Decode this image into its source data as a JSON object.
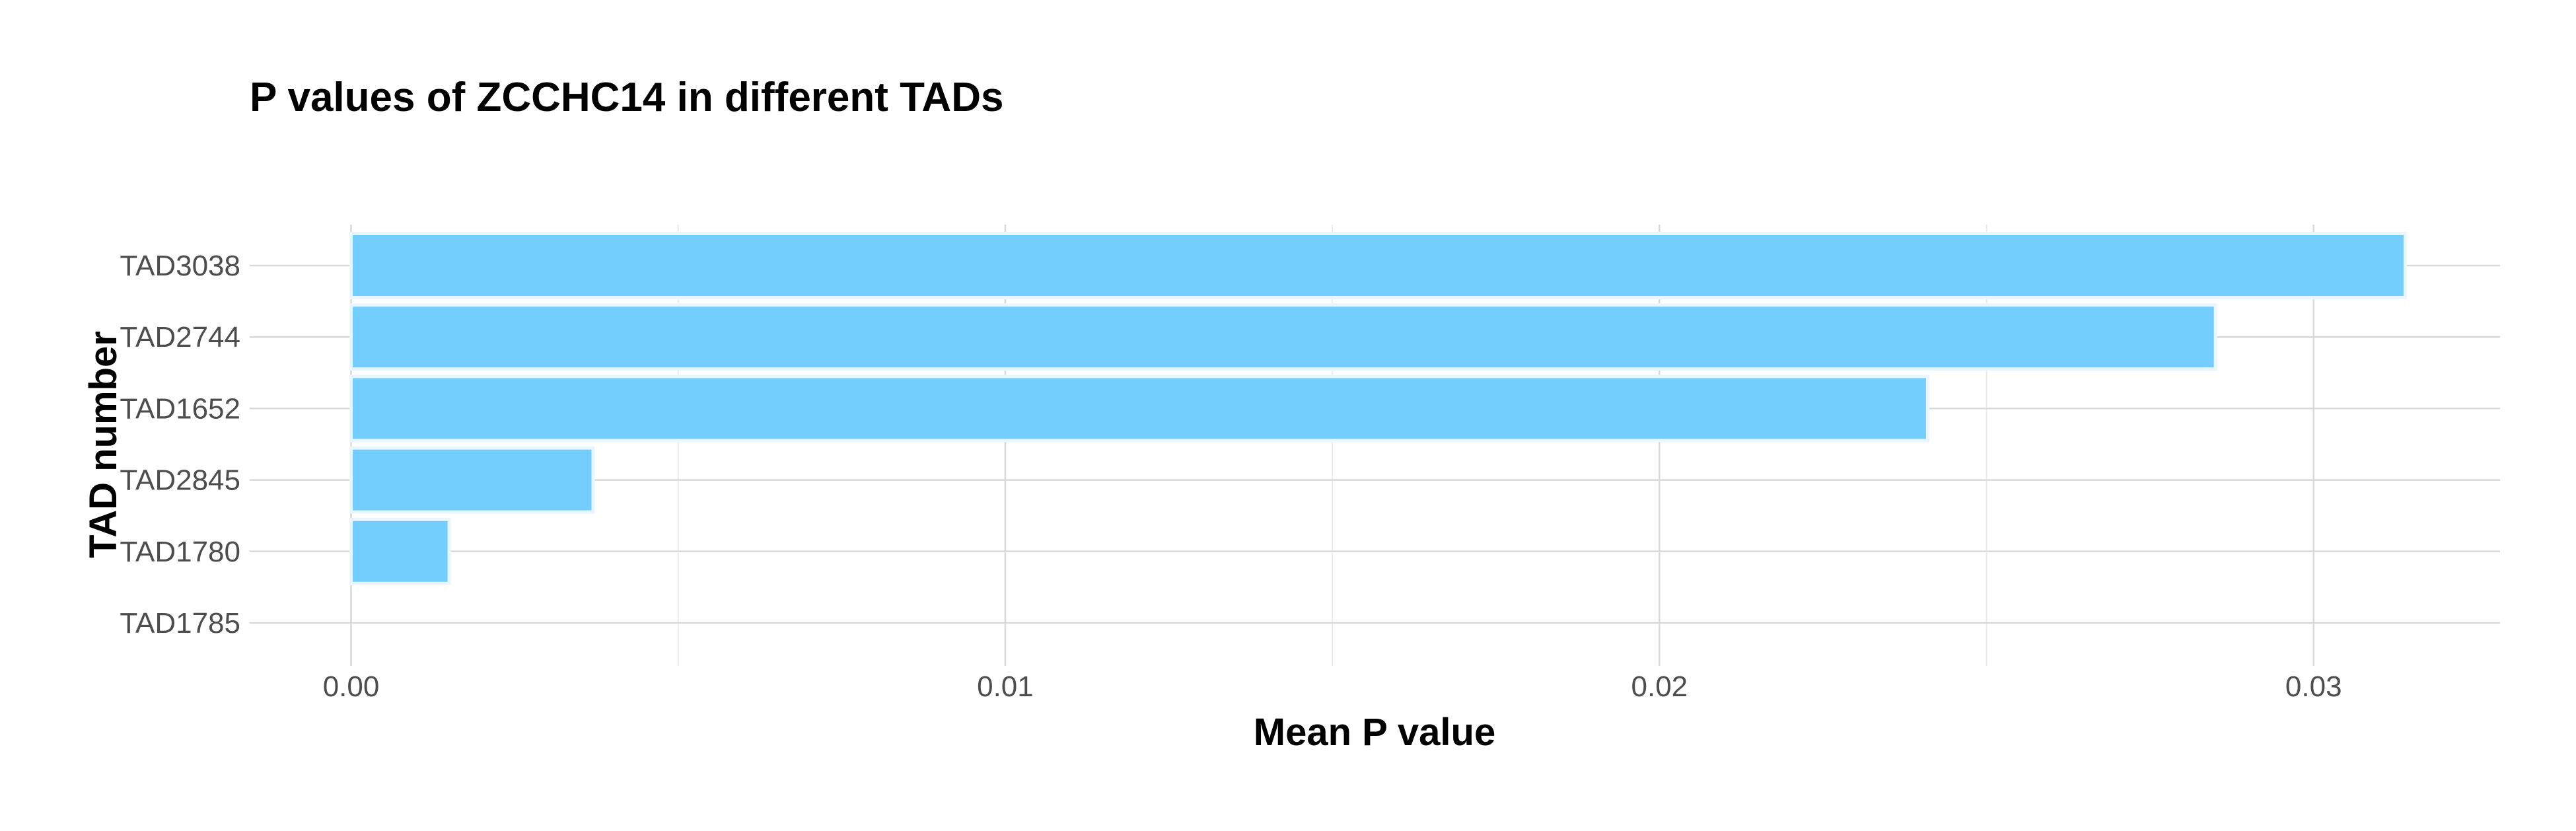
{
  "chart_data": {
    "type": "bar",
    "orientation": "horizontal",
    "title": "P values of ZCCHC14 in different TADs",
    "xlabel": "Mean P value",
    "ylabel": "TAD number",
    "categories": [
      "TAD3038",
      "TAD2744",
      "TAD1652",
      "TAD2845",
      "TAD1780",
      "TAD1785"
    ],
    "values": [
      0.0314,
      0.0285,
      0.0241,
      0.0037,
      0.0015,
      0.0
    ],
    "xlim": [
      -0.00155,
      0.03285
    ],
    "xticks": [
      0.0,
      0.01,
      0.02,
      0.03
    ],
    "xtick_labels": [
      "0.00",
      "0.01",
      "0.02",
      "0.03"
    ],
    "grid": true,
    "legend": "none",
    "colors": {
      "bar_fill": "#73cdfd",
      "bar_outline": "#eaf6ff",
      "grid_major": "#d9d9d9",
      "grid_minor": "#ebebeb",
      "tick_text": "#4d4d4d",
      "title_text": "#000000"
    }
  }
}
